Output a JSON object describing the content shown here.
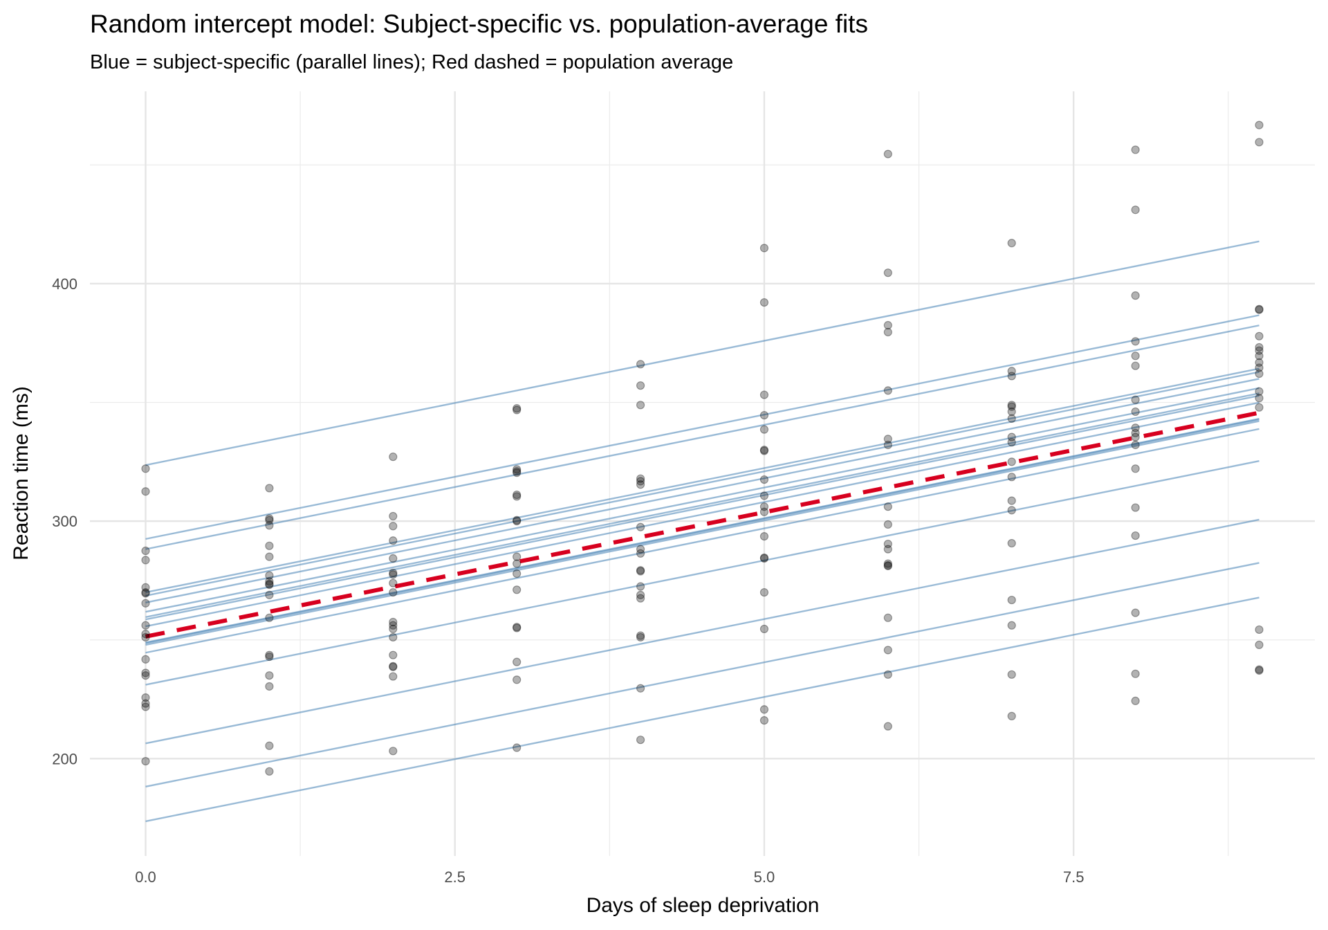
{
  "chart_data": {
    "type": "scatter",
    "title": "Random intercept model: Subject-specific vs. population-average fits",
    "subtitle": "Blue = subject-specific (parallel lines); Red dashed = population average",
    "xlabel": "Days of sleep deprivation",
    "ylabel": "Reaction time (ms)",
    "xlim": [
      -0.45,
      9.45
    ],
    "ylim": [
      159,
      481
    ],
    "x_ticks": [
      0.0,
      2.5,
      5.0,
      7.5
    ],
    "x_tick_labels": [
      "0.0",
      "2.5",
      "5.0",
      "7.5"
    ],
    "x_minor_ticks": [
      1.25,
      3.75,
      6.25,
      8.75
    ],
    "y_ticks": [
      200,
      300,
      400
    ],
    "y_tick_labels": [
      "200",
      "300",
      "400"
    ],
    "y_minor_ticks": [
      250,
      350,
      450
    ],
    "grid": true,
    "legend": "none",
    "colors": {
      "points": "#000000",
      "subject_lines": "#4682B4",
      "population_line": "#D7001F"
    },
    "points": [
      {
        "day": 0,
        "values": [
          322.1,
          312.5,
          287.5,
          283.6,
          272.1,
          270.0,
          269.6,
          265.4,
          256.1,
          252.5,
          251.1,
          241.8,
          236.1,
          235.0,
          225.7,
          223.2,
          221.8,
          198.9
        ]
      },
      {
        "day": 1,
        "values": [
          313.9,
          301.1,
          300.4,
          298.2,
          289.6,
          285.0,
          277.1,
          274.6,
          273.6,
          273.2,
          268.9,
          259.3,
          243.6,
          242.9,
          235.0,
          230.4,
          205.4,
          194.6
        ]
      },
      {
        "day": 2,
        "values": [
          327.1,
          302.1,
          297.9,
          291.8,
          284.3,
          278.2,
          277.5,
          273.9,
          270.0,
          257.5,
          256.1,
          254.6,
          251.1,
          243.6,
          238.9,
          238.6,
          234.6,
          203.2
        ]
      },
      {
        "day": 3,
        "values": [
          347.5,
          346.8,
          321.8,
          320.4,
          311.1,
          310.4,
          300.0,
          285.0,
          282.1,
          277.9,
          271.1,
          255.4,
          255.0,
          240.7,
          233.2,
          204.6,
          321.0,
          300.4
        ]
      },
      {
        "day": 4,
        "values": [
          366.1,
          357.1,
          348.9,
          317.9,
          316.8,
          315.4,
          297.5,
          288.2,
          286.4,
          279.3,
          278.9,
          272.5,
          268.9,
          267.5,
          251.8,
          251.1,
          229.6,
          207.9
        ]
      },
      {
        "day": 5,
        "values": [
          415.0,
          392.1,
          353.2,
          344.6,
          338.6,
          330.0,
          329.6,
          317.5,
          310.7,
          306.1,
          303.9,
          293.6,
          284.6,
          284.3,
          270.0,
          254.6,
          220.7,
          216.1
        ]
      },
      {
        "day": 6,
        "values": [
          454.6,
          404.6,
          382.5,
          379.6,
          355.0,
          334.6,
          332.1,
          306.1,
          298.6,
          290.4,
          288.2,
          282.1,
          281.4,
          281.1,
          259.3,
          245.7,
          235.4,
          213.6
        ]
      },
      {
        "day": 7,
        "values": [
          417.1,
          363.2,
          361.1,
          348.9,
          348.2,
          346.1,
          343.2,
          335.4,
          333.2,
          325.0,
          318.6,
          308.6,
          304.6,
          290.7,
          266.8,
          256.1,
          235.4,
          217.9
        ]
      },
      {
        "day": 8,
        "values": [
          456.4,
          431.1,
          395.0,
          375.7,
          369.6,
          365.4,
          351.1,
          346.1,
          339.3,
          337.1,
          335.4,
          332.1,
          322.1,
          305.7,
          293.9,
          261.4,
          235.7,
          224.3
        ]
      },
      {
        "day": 9,
        "values": [
          466.8,
          459.6,
          389.3,
          389.0,
          377.9,
          373.2,
          371.8,
          369.6,
          366.8,
          364.6,
          362.1,
          354.6,
          351.8,
          347.9,
          254.3,
          247.9,
          237.5,
          237.1
        ]
      }
    ],
    "subject_lines": {
      "slope": 10.47,
      "x_range": [
        0,
        9
      ],
      "intercepts": [
        323.6,
        292.5,
        288.2,
        270.0,
        268.6,
        265.7,
        261.8,
        259.6,
        258.6,
        255.7,
        248.9,
        248.6,
        247.9,
        244.6,
        231.1,
        206.4,
        188.2,
        173.6
      ]
    },
    "population_line": {
      "intercept": 251.4,
      "slope": 10.47,
      "x_range": [
        0,
        9
      ],
      "style": "dashed"
    }
  }
}
